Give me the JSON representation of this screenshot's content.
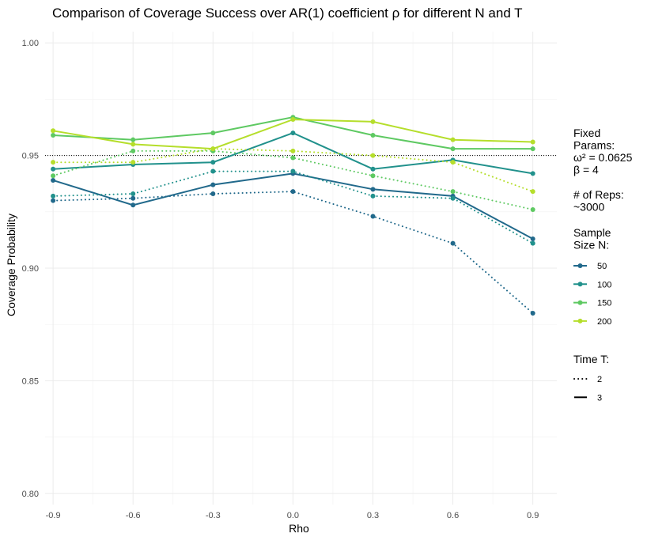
{
  "chart_data": {
    "type": "line",
    "title": "Comparison of Coverage Success over AR(1) coefficient ρ for different N and T",
    "xlabel": "Rho",
    "ylabel": "Coverage Probability",
    "x": [
      -0.9,
      -0.6,
      -0.3,
      0.0,
      0.3,
      0.6,
      0.9
    ],
    "x_tick_labels": [
      "-0.9",
      "-0.6",
      "-0.3",
      "0.0",
      "0.3",
      "0.6",
      "0.9"
    ],
    "y_ticks": [
      0.8,
      0.85,
      0.9,
      0.95,
      1.0
    ],
    "y_tick_labels": [
      "0.80",
      "0.85",
      "0.90",
      "0.95",
      "1.00"
    ],
    "xlim": [
      -0.93,
      0.99
    ],
    "ylim": [
      0.795,
      1.005
    ],
    "grid": true,
    "reference_line": {
      "y": 0.95,
      "style": "dotted",
      "color": "#000000"
    },
    "series": [
      {
        "N": "50",
        "T": "2",
        "color": "#21698B",
        "linetype": "dotted",
        "values": [
          0.93,
          0.931,
          0.933,
          0.934,
          0.923,
          0.911,
          0.88
        ]
      },
      {
        "N": "50",
        "T": "3",
        "color": "#21698B",
        "linetype": "solid",
        "values": [
          0.939,
          0.928,
          0.937,
          0.942,
          0.935,
          0.932,
          0.913
        ]
      },
      {
        "N": "100",
        "T": "2",
        "color": "#21918C",
        "linetype": "dotted",
        "values": [
          0.932,
          0.933,
          0.943,
          0.943,
          0.932,
          0.931,
          0.911
        ]
      },
      {
        "N": "100",
        "T": "3",
        "color": "#21918C",
        "linetype": "solid",
        "values": [
          0.944,
          0.946,
          0.947,
          0.96,
          0.944,
          0.948,
          0.942
        ]
      },
      {
        "N": "150",
        "T": "2",
        "color": "#5EC962",
        "linetype": "dotted",
        "values": [
          0.941,
          0.952,
          0.952,
          0.949,
          0.941,
          0.934,
          0.926
        ]
      },
      {
        "N": "150",
        "T": "3",
        "color": "#5EC962",
        "linetype": "solid",
        "values": [
          0.959,
          0.957,
          0.96,
          0.967,
          0.959,
          0.953,
          0.953
        ]
      },
      {
        "N": "200",
        "T": "2",
        "color": "#B5DE2B",
        "linetype": "dotted",
        "values": [
          0.947,
          0.947,
          0.953,
          0.952,
          0.95,
          0.947,
          0.934
        ]
      },
      {
        "N": "200",
        "T": "3",
        "color": "#B5DE2B",
        "linetype": "solid",
        "values": [
          0.961,
          0.955,
          0.953,
          0.966,
          0.965,
          0.957,
          0.956
        ]
      }
    ],
    "legend": {
      "placement": "right",
      "fixed_params_lines": [
        "Fixed",
        "Params:",
        "ω² = 0.0625",
        "β = 4"
      ],
      "reps_lines": [
        "# of Reps:",
        "~3000"
      ],
      "sample_size_title_lines": [
        "Sample",
        "Size N:"
      ],
      "sample_size_entries": [
        {
          "label": "50",
          "color": "#21698B"
        },
        {
          "label": "100",
          "color": "#21918C"
        },
        {
          "label": "150",
          "color": "#5EC962"
        },
        {
          "label": "200",
          "color": "#B5DE2B"
        }
      ],
      "time_title": "Time T:",
      "time_entries": [
        {
          "label": "2",
          "linetype": "dotted"
        },
        {
          "label": "3",
          "linetype": "solid"
        }
      ]
    }
  }
}
